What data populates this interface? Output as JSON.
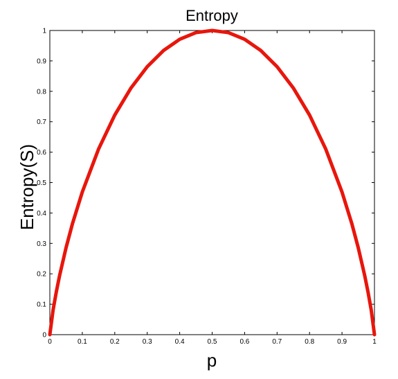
{
  "chart_data": {
    "type": "line",
    "title": "Entropy",
    "xlabel": "p",
    "ylabel": "Entropy(S)",
    "xlim": [
      0,
      1
    ],
    "ylim": [
      0,
      1
    ],
    "grid": false,
    "xticks": [
      "0",
      "0.1",
      "0.2",
      "0.3",
      "0.4",
      "0.5",
      "0.6",
      "0.7",
      "0.8",
      "0.9",
      "1"
    ],
    "yticks": [
      "0",
      "0.1",
      "0.2",
      "0.3",
      "0.4",
      "0.5",
      "0.6",
      "0.7",
      "0.8",
      "0.9",
      "1"
    ],
    "series": [
      {
        "color": "#e8160c",
        "x": [
          0.0,
          0.01,
          0.02,
          0.03,
          0.05,
          0.07,
          0.1,
          0.15,
          0.2,
          0.25,
          0.3,
          0.35,
          0.4,
          0.45,
          0.5,
          0.55,
          0.6,
          0.65,
          0.7,
          0.75,
          0.8,
          0.85,
          0.9,
          0.93,
          0.95,
          0.97,
          0.98,
          0.99,
          1.0
        ],
        "y": [
          0.0,
          0.081,
          0.141,
          0.194,
          0.286,
          0.366,
          0.469,
          0.61,
          0.722,
          0.811,
          0.881,
          0.934,
          0.971,
          0.993,
          1.0,
          0.993,
          0.971,
          0.934,
          0.881,
          0.811,
          0.722,
          0.61,
          0.469,
          0.366,
          0.286,
          0.194,
          0.141,
          0.081,
          0.0
        ]
      }
    ]
  }
}
